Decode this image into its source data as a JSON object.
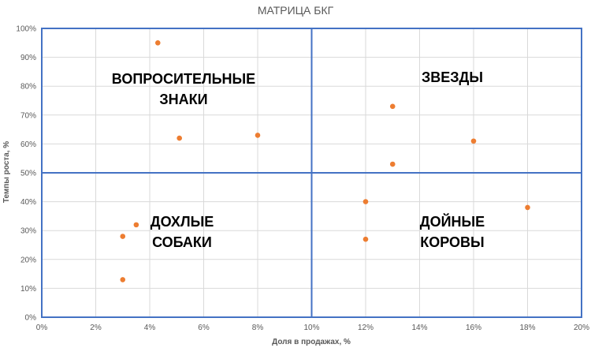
{
  "chart_data": {
    "type": "scatter",
    "title": "МАТРИЦА БКГ",
    "xlabel": "Доля в продажах, %",
    "ylabel": "Темпы роста, %",
    "xlim": [
      0,
      20
    ],
    "ylim": [
      0,
      100
    ],
    "x_ticks": [
      "0%",
      "2%",
      "4%",
      "6%",
      "8%",
      "10%",
      "12%",
      "14%",
      "16%",
      "18%",
      "20%"
    ],
    "y_ticks": [
      "0%",
      "10%",
      "20%",
      "30%",
      "40%",
      "50%",
      "60%",
      "70%",
      "80%",
      "90%",
      "100%"
    ],
    "grid": true,
    "divider": {
      "x": 10,
      "y": 50
    },
    "points": [
      {
        "x": 4.3,
        "y": 95
      },
      {
        "x": 5.1,
        "y": 62
      },
      {
        "x": 8.0,
        "y": 63
      },
      {
        "x": 13.0,
        "y": 73
      },
      {
        "x": 16.0,
        "y": 61
      },
      {
        "x": 13.0,
        "y": 53
      },
      {
        "x": 12.0,
        "y": 40
      },
      {
        "x": 12.0,
        "y": 27
      },
      {
        "x": 18.0,
        "y": 38
      },
      {
        "x": 3.5,
        "y": 32
      },
      {
        "x": 3.0,
        "y": 28
      },
      {
        "x": 3.0,
        "y": 13
      }
    ],
    "quadrant_labels": [
      {
        "lines": [
          "ВОПРОСИТЕЛЬНЫЕ",
          "ЗНАКИ"
        ],
        "position": "top-left"
      },
      {
        "lines": [
          "ЗВЕЗДЫ"
        ],
        "position": "top-right"
      },
      {
        "lines": [
          "ДОХЛЫЕ",
          "СОБАКИ"
        ],
        "position": "bottom-left"
      },
      {
        "lines": [
          "ДОЙНЫЕ",
          "КОРОВЫ"
        ],
        "position": "bottom-right"
      }
    ],
    "colors": {
      "point": "#ED7D31",
      "frame": "#4472C4",
      "grid": "#D9D9D9"
    }
  }
}
